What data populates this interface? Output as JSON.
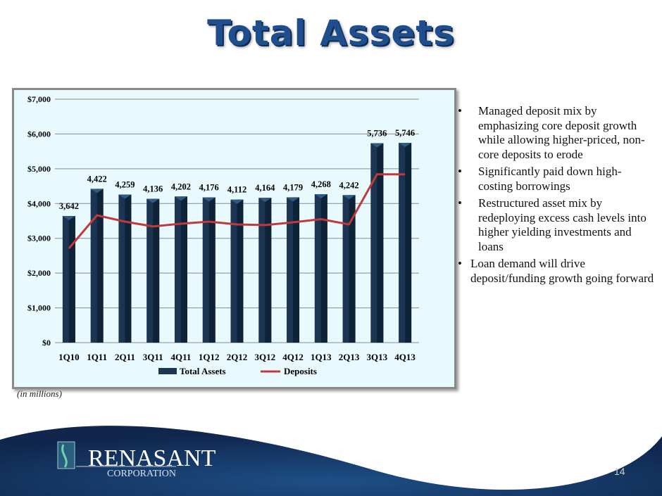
{
  "title": "Total Assets",
  "units_note": "(in millions)",
  "bullets": [
    "Managed deposit mix by emphasizing core deposit growth while allowing higher-priced, non-core deposits to erode",
    "Significantly paid down high-costing borrowings",
    "Restructured asset mix by redeploying excess cash levels into higher yielding investments and loans",
    "Loan demand will drive deposit/funding growth going forward"
  ],
  "logo": {
    "name": "RENASANT",
    "sub": "CORPORATION"
  },
  "page_number": "14",
  "colors": {
    "bar": "#1b3553",
    "line": "#c0393b",
    "title": "#1f4e8c"
  },
  "chart_data": {
    "type": "bar",
    "categories": [
      "1Q10",
      "1Q11",
      "2Q11",
      "3Q11",
      "4Q11",
      "1Q12",
      "2Q12",
      "3Q12",
      "4Q12",
      "1Q13",
      "2Q13",
      "3Q13",
      "4Q13"
    ],
    "series": [
      {
        "name": "Total Assets",
        "type": "bar",
        "values": [
          3642,
          4422,
          4259,
          4136,
          4202,
          4176,
          4112,
          4164,
          4179,
          4268,
          4242,
          5736,
          5746
        ],
        "labels": [
          "3,642",
          "4,422",
          "4,259",
          "4,136",
          "4,202",
          "4,176",
          "4,112",
          "4,164",
          "4,179",
          "4,268",
          "4,242",
          "5,736",
          "5,746"
        ]
      },
      {
        "name": "Deposits",
        "type": "line",
        "values": [
          2710,
          3660,
          3480,
          3340,
          3420,
          3480,
          3400,
          3380,
          3460,
          3550,
          3400,
          4840,
          4840
        ]
      }
    ],
    "ylim": [
      0,
      7000
    ],
    "yticks": [
      0,
      1000,
      2000,
      3000,
      4000,
      5000,
      6000,
      7000
    ],
    "ytick_labels": [
      "$0",
      "$1,000",
      "$2,000",
      "$3,000",
      "$4,000",
      "$5,000",
      "$6,000",
      "$7,000"
    ],
    "grid": true,
    "legend": "bottom"
  }
}
